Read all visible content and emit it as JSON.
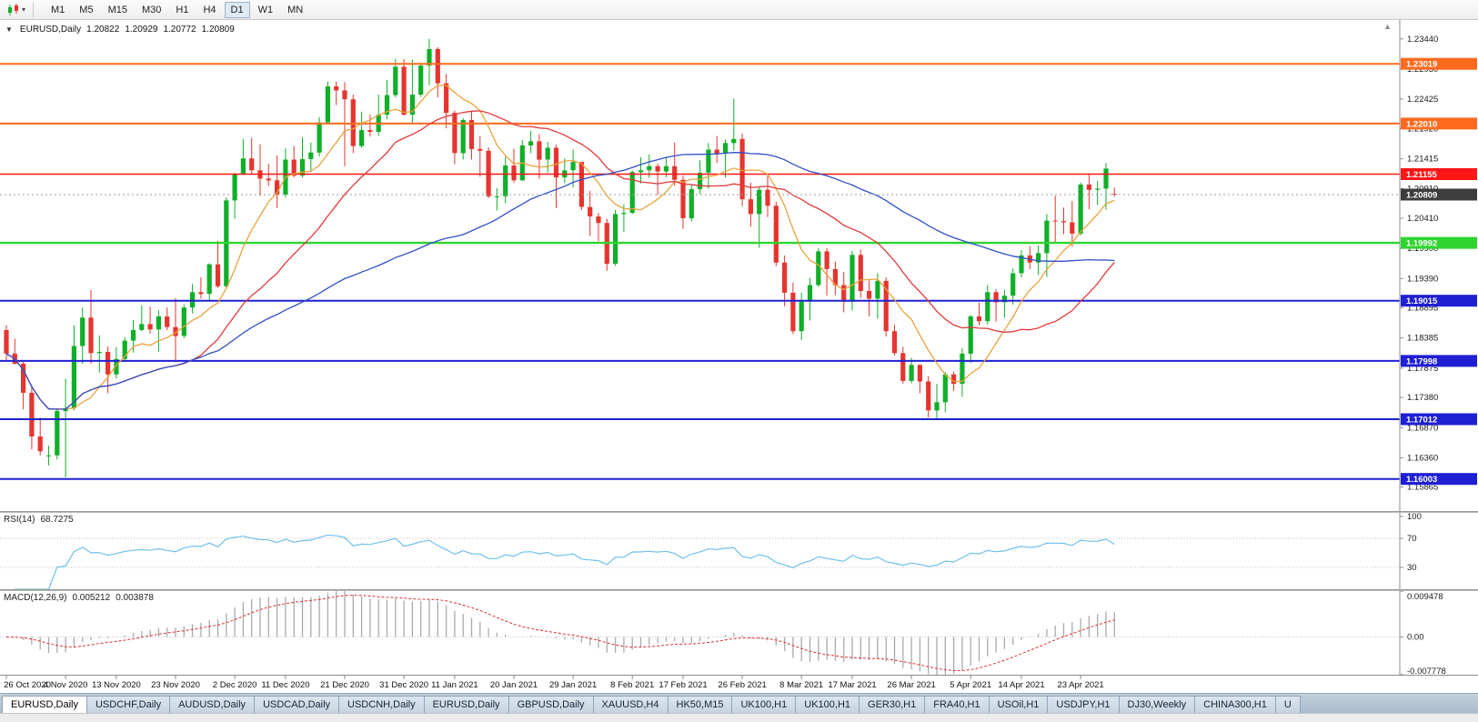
{
  "toolbar": {
    "timeframes": [
      "M1",
      "M5",
      "M15",
      "M30",
      "H1",
      "H4",
      "D1",
      "W1",
      "MN"
    ],
    "active_timeframe": "D1"
  },
  "chart": {
    "header": {
      "symbol": "EURUSD,Daily",
      "open": "1.20822",
      "high": "1.20929",
      "low": "1.20772",
      "close": "1.20809"
    },
    "scale": {
      "max": 1.2376,
      "min": 1.1546
    },
    "price_ticks": [
      "1.23440",
      "1.22930",
      "1.22425",
      "1.21920",
      "1.21415",
      "1.20910",
      "1.20410",
      "1.19900",
      "1.19390",
      "1.18895",
      "1.18385",
      "1.17875",
      "1.17380",
      "1.16870",
      "1.16360",
      "1.15865"
    ],
    "hlines": [
      {
        "price": 1.23019,
        "label": "1.23019",
        "color": "#ff6a1f",
        "width": 2
      },
      {
        "price": 1.2201,
        "label": "1.22010",
        "color": "#ff6a1f",
        "width": 2
      },
      {
        "price": 1.21155,
        "label": "1.21155",
        "color": "#ff1616",
        "width": 1.6
      },
      {
        "price": 1.19992,
        "label": "1.19992",
        "color": "#2ed52e",
        "width": 2.4
      },
      {
        "price": 1.19015,
        "label": "1.19015",
        "color": "#1f1fd4",
        "width": 2
      },
      {
        "price": 1.17998,
        "label": "1.17998",
        "color": "#1f1fd4",
        "width": 2
      },
      {
        "price": 1.17012,
        "label": "1.17012",
        "color": "#1f1fd4",
        "width": 2
      },
      {
        "price": 1.16003,
        "label": "1.16003",
        "color": "#1f1fd4",
        "width": 2
      }
    ],
    "current_price": {
      "label": "1.20809",
      "value": 1.20809,
      "badge_color": "#3d3d3d",
      "line_color": "#9b9b9b"
    },
    "colors": {
      "bull": "#0faf28",
      "bear": "#e5352f",
      "axis_border": "#8c8c8c"
    },
    "moving_averages": [
      {
        "period": 8,
        "color": "#e8a33d",
        "name": "ma-fast-line"
      },
      {
        "period": 21,
        "color": "#e03a3a",
        "name": "ma-mid-line"
      },
      {
        "period": 55,
        "color": "#3050c8",
        "name": "ma-slow-line"
      }
    ],
    "time_labels": [
      "26 Oct 2020",
      "4 Nov 2020",
      "13 Nov 2020",
      "23 Nov 2020",
      "2 Dec 2020",
      "11 Dec 2020",
      "21 Dec 2020",
      "31 Dec 2020",
      "11 Jan 2021",
      "20 Jan 2021",
      "29 Jan 2021",
      "8 Feb 2021",
      "17 Feb 2021",
      "26 Feb 2021",
      "8 Mar 2021",
      "17 Mar 2021",
      "26 Mar 2021",
      "5 Apr 2021",
      "14 Apr 2021",
      "23 Apr 2021"
    ],
    "candles": [
      [
        1.1852,
        1.186,
        1.1799,
        1.1812
      ],
      [
        1.1812,
        1.1837,
        1.1794,
        1.1795
      ],
      [
        1.1795,
        1.18,
        1.1718,
        1.1746
      ],
      [
        1.1746,
        1.1759,
        1.165,
        1.1672
      ],
      [
        1.1672,
        1.1704,
        1.164,
        1.1647
      ],
      [
        1.164,
        1.1656,
        1.1623,
        1.164
      ],
      [
        1.164,
        1.172,
        1.1633,
        1.1715
      ],
      [
        1.1715,
        1.177,
        1.1603,
        1.172
      ],
      [
        1.172,
        1.186,
        1.1716,
        1.1825
      ],
      [
        1.1825,
        1.189,
        1.1795,
        1.1873
      ],
      [
        1.1873,
        1.192,
        1.1795,
        1.1813
      ],
      [
        1.1813,
        1.1843,
        1.178,
        1.1815
      ],
      [
        1.1815,
        1.1824,
        1.1745,
        1.1777
      ],
      [
        1.1777,
        1.1823,
        1.177,
        1.1803
      ],
      [
        1.1803,
        1.184,
        1.1798,
        1.1834
      ],
      [
        1.1834,
        1.1869,
        1.1814,
        1.1852
      ],
      [
        1.1852,
        1.1894,
        1.185,
        1.1862
      ],
      [
        1.1862,
        1.1891,
        1.1846,
        1.1853
      ],
      [
        1.1853,
        1.1885,
        1.1815,
        1.1875
      ],
      [
        1.1875,
        1.189,
        1.1852,
        1.1857
      ],
      [
        1.1857,
        1.1906,
        1.18,
        1.1842
      ],
      [
        1.1842,
        1.1895,
        1.1838,
        1.189
      ],
      [
        1.189,
        1.193,
        1.188,
        1.1916
      ],
      [
        1.1916,
        1.1941,
        1.1905,
        1.1913
      ],
      [
        1.1913,
        1.1965,
        1.19,
        1.1963
      ],
      [
        1.1963,
        1.2003,
        1.1923,
        1.1926
      ],
      [
        1.1926,
        1.2076,
        1.1922,
        1.2071
      ],
      [
        1.2071,
        1.2118,
        1.204,
        1.2115
      ],
      [
        1.2115,
        1.2175,
        1.2114,
        1.2142
      ],
      [
        1.2142,
        1.2177,
        1.2115,
        1.2122
      ],
      [
        1.2122,
        1.2166,
        1.2079,
        1.2108
      ],
      [
        1.2108,
        1.2133,
        1.2095,
        1.2105
      ],
      [
        1.2105,
        1.2147,
        1.2058,
        1.2081
      ],
      [
        1.2081,
        1.2159,
        1.2076,
        1.214
      ],
      [
        1.214,
        1.2163,
        1.211,
        1.2113
      ],
      [
        1.2113,
        1.2178,
        1.211,
        1.2141
      ],
      [
        1.2141,
        1.2169,
        1.212,
        1.2152
      ],
      [
        1.2152,
        1.2212,
        1.2145,
        1.2203
      ],
      [
        1.2203,
        1.2272,
        1.2202,
        1.2264
      ],
      [
        1.2264,
        1.2272,
        1.2232,
        1.2257
      ],
      [
        1.2257,
        1.2271,
        1.2129,
        1.2242
      ],
      [
        1.2242,
        1.225,
        1.2151,
        1.2163
      ],
      [
        1.2163,
        1.2221,
        1.216,
        1.219
      ],
      [
        1.219,
        1.2216,
        1.2179,
        1.2187
      ],
      [
        1.2187,
        1.225,
        1.218,
        1.2216
      ],
      [
        1.2216,
        1.2275,
        1.2208,
        1.2249
      ],
      [
        1.2249,
        1.231,
        1.2245,
        1.2297
      ],
      [
        1.2297,
        1.231,
        1.2214,
        1.2216
      ],
      [
        1.2216,
        1.2309,
        1.22,
        1.225
      ],
      [
        1.225,
        1.2304,
        1.2246,
        1.2299
      ],
      [
        1.2299,
        1.2344,
        1.2266,
        1.2327
      ],
      [
        1.2327,
        1.233,
        1.2245,
        1.2269
      ],
      [
        1.2269,
        1.2285,
        1.2193,
        1.2219
      ],
      [
        1.2219,
        1.2223,
        1.2132,
        1.2151
      ],
      [
        1.2151,
        1.221,
        1.214,
        1.2207
      ],
      [
        1.2207,
        1.2223,
        1.214,
        1.2158
      ],
      [
        1.2158,
        1.218,
        1.2111,
        1.2155
      ],
      [
        1.2155,
        1.2161,
        1.2075,
        1.2078
      ],
      [
        1.2078,
        1.2092,
        1.2054,
        1.2078
      ],
      [
        1.2078,
        1.2145,
        1.2066,
        1.213
      ],
      [
        1.213,
        1.2158,
        1.2101,
        1.2105
      ],
      [
        1.2105,
        1.2173,
        1.2104,
        1.2164
      ],
      [
        1.2164,
        1.2189,
        1.2151,
        1.2171
      ],
      [
        1.2171,
        1.2183,
        1.2108,
        1.214
      ],
      [
        1.214,
        1.217,
        1.2118,
        1.216
      ],
      [
        1.216,
        1.2165,
        1.2058,
        1.211
      ],
      [
        1.211,
        1.2142,
        1.21,
        1.2122
      ],
      [
        1.2122,
        1.2157,
        1.2093,
        1.2136
      ],
      [
        1.2136,
        1.2136,
        1.2055,
        1.206
      ],
      [
        1.206,
        1.2087,
        1.2011,
        1.2044
      ],
      [
        1.2044,
        1.205,
        1.2002,
        1.2033
      ],
      [
        1.2033,
        1.204,
        1.1952,
        1.1964
      ],
      [
        1.1964,
        1.2055,
        1.196,
        1.2048
      ],
      [
        1.2048,
        1.2064,
        1.2018,
        1.205
      ],
      [
        1.205,
        1.2122,
        1.2048,
        1.2119
      ],
      [
        1.2119,
        1.2144,
        1.21,
        1.2122
      ],
      [
        1.2122,
        1.2149,
        1.2109,
        1.2129
      ],
      [
        1.2129,
        1.2133,
        1.208,
        1.212
      ],
      [
        1.212,
        1.2145,
        1.211,
        1.2129
      ],
      [
        1.2129,
        1.2169,
        1.2096,
        1.2106
      ],
      [
        1.2106,
        1.2113,
        1.2023,
        1.2041
      ],
      [
        1.2041,
        1.2097,
        1.2036,
        1.209
      ],
      [
        1.209,
        1.2139,
        1.2082,
        1.2118
      ],
      [
        1.2118,
        1.2168,
        1.2091,
        1.2157
      ],
      [
        1.2157,
        1.218,
        1.2134,
        1.215
      ],
      [
        1.215,
        1.2174,
        1.211,
        1.2168
      ],
      [
        1.2168,
        1.2243,
        1.2155,
        1.2175
      ],
      [
        1.2175,
        1.2184,
        1.2061,
        1.2073
      ],
      [
        1.2073,
        1.2101,
        1.2027,
        1.2048
      ],
      [
        1.2048,
        1.2094,
        1.1991,
        1.2089
      ],
      [
        1.2089,
        1.2113,
        1.2043,
        1.2062
      ],
      [
        1.2062,
        1.2069,
        1.196,
        1.1966
      ],
      [
        1.1966,
        1.1978,
        1.1892,
        1.1915
      ],
      [
        1.1915,
        1.1932,
        1.1845,
        1.185
      ],
      [
        1.185,
        1.1915,
        1.1835,
        1.19
      ],
      [
        1.19,
        1.194,
        1.1868,
        1.1928
      ],
      [
        1.1928,
        1.199,
        1.1925,
        1.1985
      ],
      [
        1.1985,
        1.199,
        1.191,
        1.1955
      ],
      [
        1.1955,
        1.1968,
        1.1911,
        1.1928
      ],
      [
        1.1928,
        1.195,
        1.1882,
        1.19
      ],
      [
        1.19,
        1.1986,
        1.1885,
        1.1979
      ],
      [
        1.1979,
        1.1988,
        1.1906,
        1.1918
      ],
      [
        1.1918,
        1.1936,
        1.1875,
        1.1905
      ],
      [
        1.1905,
        1.1948,
        1.1871,
        1.1935
      ],
      [
        1.1935,
        1.1941,
        1.1841,
        1.185
      ],
      [
        1.185,
        1.1861,
        1.1809,
        1.1813
      ],
      [
        1.1813,
        1.1824,
        1.1761,
        1.1766
      ],
      [
        1.1766,
        1.1805,
        1.1762,
        1.1793
      ],
      [
        1.1793,
        1.1794,
        1.1745,
        1.1765
      ],
      [
        1.1765,
        1.1774,
        1.1704,
        1.1716
      ],
      [
        1.1716,
        1.1761,
        1.17,
        1.173
      ],
      [
        1.173,
        1.1781,
        1.1713,
        1.1777
      ],
      [
        1.1777,
        1.1782,
        1.1749,
        1.1761
      ],
      [
        1.1761,
        1.1821,
        1.1739,
        1.1812
      ],
      [
        1.1812,
        1.1878,
        1.1796,
        1.1875
      ],
      [
        1.1875,
        1.1898,
        1.186,
        1.1867
      ],
      [
        1.1867,
        1.1928,
        1.1861,
        1.1916
      ],
      [
        1.1916,
        1.1921,
        1.1866,
        1.1899
      ],
      [
        1.1899,
        1.192,
        1.1873,
        1.191
      ],
      [
        1.191,
        1.1956,
        1.1895,
        1.1948
      ],
      [
        1.1948,
        1.1987,
        1.1941,
        1.1978
      ],
      [
        1.1978,
        1.1994,
        1.1955,
        1.1966
      ],
      [
        1.1966,
        1.1995,
        1.1945,
        1.1982
      ],
      [
        1.1982,
        1.2048,
        1.1942,
        1.2037
      ],
      [
        1.2037,
        1.2079,
        1.2001,
        1.2036
      ],
      [
        1.2036,
        1.2059,
        1.2014,
        1.2034
      ],
      [
        1.2034,
        1.207,
        1.1993,
        1.2015
      ],
      [
        1.2015,
        1.2101,
        1.2012,
        1.2098
      ],
      [
        1.2098,
        1.2117,
        1.2056,
        1.2089
      ],
      [
        1.2089,
        1.2104,
        1.2063,
        1.2091
      ],
      [
        1.2091,
        1.2134,
        1.2055,
        1.2125
      ],
      [
        1.20822,
        1.20929,
        1.20772,
        1.20809
      ]
    ]
  },
  "rsi": {
    "name": "RSI(14)",
    "value": "68.7275",
    "period": 14,
    "color": "#6fc0e8",
    "levels": [
      {
        "label": "100",
        "value": 100,
        "dotted": false
      },
      {
        "label": "70",
        "value": 70,
        "dotted": true
      },
      {
        "label": "30",
        "value": 30,
        "dotted": true
      }
    ],
    "range": [
      0,
      105
    ]
  },
  "macd": {
    "name": "MACD(12,26,9)",
    "main_value": "0.005212",
    "signal_value": "0.003878",
    "fast": 12,
    "slow": 26,
    "signal": 9,
    "hist_color": "#ababab",
    "signal_color": "#dd2f2f",
    "axis": [
      {
        "label": "0.009478",
        "value": 0.009478
      },
      {
        "label": "0.00",
        "value": 0
      },
      {
        "label": "-0.007778",
        "value": -0.007778
      }
    ],
    "range": [
      -0.0078,
      0.0095
    ]
  },
  "tabs": [
    "EURUSD,Daily",
    "USDCHF,Daily",
    "AUDUSD,Daily",
    "USDCAD,Daily",
    "USDCNH,Daily",
    "EURUSD,Daily",
    "GBPUSD,Daily",
    "XAUUSD,H4",
    "HK50,M15",
    "UK100,H1",
    "UK100,H1",
    "GER30,H1",
    "FRA40,H1",
    "USOil,H1",
    "USDJPY,H1",
    "DJ30,Weekly",
    "CHINA300,H1",
    "U"
  ],
  "active_tab_index": 0
}
